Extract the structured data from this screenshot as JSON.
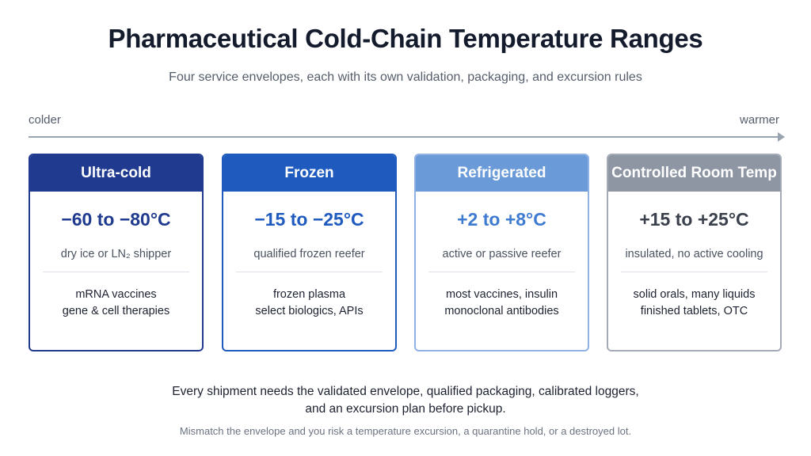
{
  "title": "Pharmaceutical Cold-Chain Temperature Ranges",
  "subtitle": "Four service envelopes, each with its own validation, packaging, and excursion rules",
  "axis": {
    "left_label": "colder",
    "right_label": "warmer",
    "color": "#9aa3b0"
  },
  "cards": [
    {
      "name": "Ultra-cold",
      "range": "−60 to −80°C",
      "packaging": "dry ice or LN₂ shipper",
      "uses": [
        "mRNA vaccines",
        "gene & cell therapies"
      ],
      "header_color": "#1f3a8f",
      "border_color": "#1f3a8f",
      "range_color": "#1f3a8f"
    },
    {
      "name": "Frozen",
      "range": "−15 to −25°C",
      "packaging": "qualified frozen reefer",
      "uses": [
        "frozen plasma",
        "select biologics, APIs"
      ],
      "header_color": "#1f5bbf",
      "border_color": "#1f5bbf",
      "range_color": "#1f5bbf"
    },
    {
      "name": "Refrigerated",
      "range": "+2 to +8°C",
      "packaging": "active or passive reefer",
      "uses": [
        "most vaccines, insulin",
        "monoclonal antibodies"
      ],
      "header_color": "#6a9ad8",
      "border_color": "#8fb1e3",
      "range_color": "#3f7bd0"
    },
    {
      "name": "Controlled Room Temp",
      "range": "+15 to +25°C",
      "packaging": "insulated, no active cooling",
      "uses": [
        "solid orals, many liquids",
        "finished tablets, OTC"
      ],
      "header_color": "#8e96a3",
      "border_color": "#a4abb6",
      "range_color": "#3a404c"
    }
  ],
  "notes": {
    "main_line1": "Every shipment needs the validated envelope, qualified packaging, calibrated loggers,",
    "main_line2": "and an excursion plan before pickup.",
    "sub": "Mismatch the envelope and you risk a temperature excursion, a quarantine hold, or a destroyed lot."
  }
}
